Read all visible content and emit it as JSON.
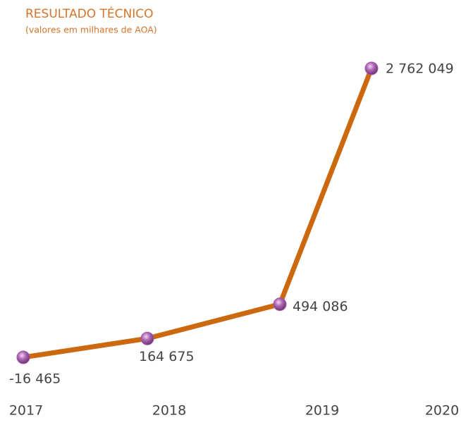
{
  "chart_data": {
    "type": "line",
    "title": "RESULTADO TÉCNICO",
    "subtitle": "(valores em milhares de AOA)",
    "categories": [
      "2017",
      "2018",
      "2019",
      "2020"
    ],
    "values": [
      -16465,
      164675,
      494086,
      2762049
    ],
    "value_labels": [
      "-16 465",
      "164 675",
      "494 086",
      "2 762 049"
    ],
    "color": "#cc680e",
    "marker_color": "#a15aa6"
  }
}
